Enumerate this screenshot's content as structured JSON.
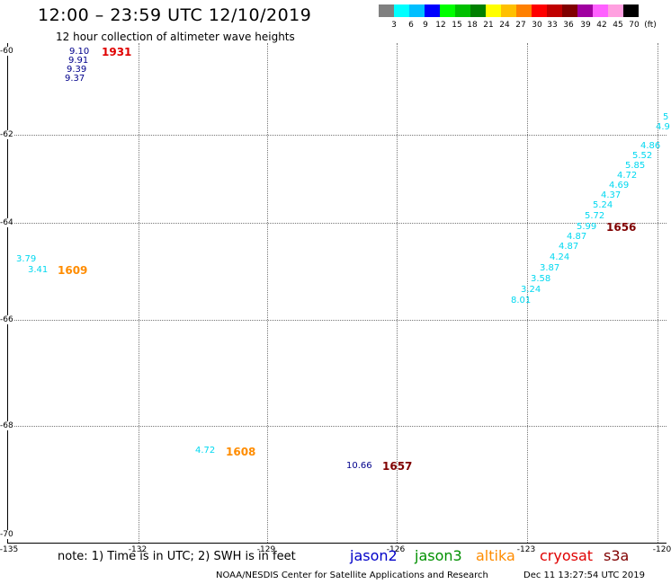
{
  "header": {
    "title": "12:00 – 23:59 UTC 12/10/2019",
    "subtitle": "12 hour collection of altimeter wave heights"
  },
  "legend": {
    "colors": [
      "#808080",
      "#00ffff",
      "#00bfff",
      "#0000ff",
      "#00ff00",
      "#00c000",
      "#008000",
      "#ffff00",
      "#ffc000",
      "#ff8000",
      "#ff0000",
      "#c00000",
      "#800000",
      "#a000a0",
      "#ff60ff",
      "#ffa0e0",
      "#000000"
    ],
    "labels": [
      "3",
      "6",
      "9",
      "12",
      "15",
      "18",
      "21",
      "24",
      "27",
      "30",
      "33",
      "36",
      "39",
      "42",
      "45",
      "70"
    ],
    "unit": "(ft)"
  },
  "axes": {
    "lat_labels": [
      "-60",
      "-62",
      "-64",
      "-66",
      "-68",
      "-70"
    ],
    "lon_labels": [
      "-135",
      "-132",
      "-129",
      "-126",
      "-123",
      "-120"
    ]
  },
  "observations": {
    "top_left": [
      "9.10",
      "9.91",
      "9.39",
      "9.37"
    ],
    "left_mid": [
      "3.79",
      "3.41"
    ],
    "right_track": [
      "5",
      "4.9",
      "4.86",
      "5.52",
      "5.85",
      "4.72",
      "4.69",
      "4.37",
      "5.24",
      "5.72",
      "5.99",
      "4.87",
      "4.87",
      "4.24",
      "3.87",
      "3.58",
      "3.24",
      "8.01"
    ],
    "bottom_a": "4.72",
    "bottom_b": "10.66"
  },
  "passes": {
    "p1931": "1931",
    "p1609": "1609",
    "p1656": "1656",
    "p1608": "1608",
    "p1657": "1657"
  },
  "colors": {
    "jason2": "#0000c8",
    "jason3": "#009000",
    "altika": "#ff8c00",
    "cryosat": "#e00000",
    "s3a": "#800000",
    "cyan": "#00d8f0",
    "dark_blue": "#00008b"
  },
  "footer": {
    "note": "note: 1) Time is in UTC; 2) SWH is in feet",
    "satellites": [
      "jason2",
      "jason3",
      "altika",
      "cryosat",
      "s3a"
    ],
    "credit": "NOAA/NESDIS Center for Satellite Applications and Research",
    "timestamp": "Dec 11 13:27:54 UTC 2019"
  }
}
